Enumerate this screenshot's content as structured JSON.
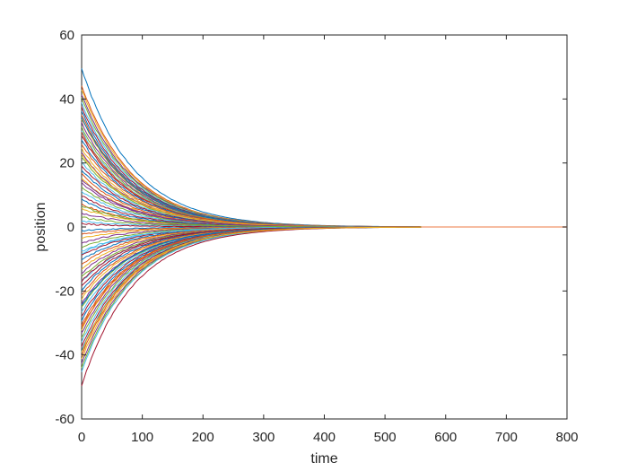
{
  "chart_data": {
    "type": "line",
    "title": "",
    "xlabel": "time",
    "ylabel": "position",
    "xlim": [
      0,
      800
    ],
    "ylim": [
      -60,
      60
    ],
    "xticks": [
      0,
      100,
      200,
      300,
      400,
      500,
      600,
      700,
      800
    ],
    "yticks": [
      -60,
      -40,
      -20,
      0,
      20,
      40,
      60
    ],
    "grid": false,
    "legend": "none",
    "converge_time": 560,
    "converge_value": 0,
    "flat_line_color": "#f4a582",
    "colors": [
      "#0072bd",
      "#d95319",
      "#edb120",
      "#7e2f8e",
      "#77ac30",
      "#4dbeee",
      "#a2142f"
    ],
    "series_count": 80,
    "series_initial_positions": [
      49.5,
      44.2,
      43.0,
      41.5,
      40.3,
      38.8,
      37.6,
      36.2,
      35.1,
      33.9,
      32.5,
      31.2,
      30.0,
      28.6,
      27.3,
      26.0,
      24.5,
      23.1,
      21.8,
      20.4,
      19.2,
      17.9,
      16.5,
      15.1,
      13.8,
      12.5,
      11.2,
      9.8,
      8.5,
      7.1,
      5.8,
      4.4,
      3.1,
      1.9,
      1.0,
      -1.2,
      -2.4,
      -3.6,
      -5.0,
      -6.3,
      -7.7,
      -9.0,
      -10.4,
      -11.7,
      -13.1,
      -14.4,
      -15.8,
      -17.1,
      -18.5,
      -19.8,
      -21.2,
      -22.5,
      -23.9,
      -25.2,
      -26.6,
      -27.9,
      -29.3,
      -30.6,
      -32.0,
      -33.3,
      -34.7,
      -36.0,
      -37.4,
      -38.7,
      -40.1,
      -41.4,
      -42.8,
      -44.1,
      -45.2,
      -49.5,
      34.5,
      29.4,
      22.6,
      14.7,
      6.6,
      -8.2,
      -16.9,
      -24.7,
      -31.5,
      -39.2
    ],
    "decay_time_constant": 85
  }
}
